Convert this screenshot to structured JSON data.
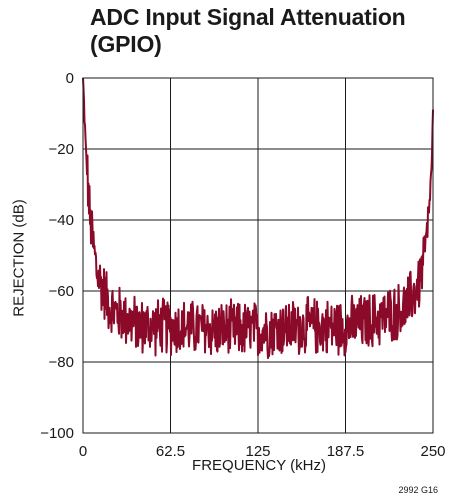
{
  "chart_data": {
    "type": "line",
    "title_line1": "ADC Input Signal Attenuation",
    "title_line2": "(GPIO)",
    "xlabel": "FREQUENCY (kHz)",
    "ylabel": "REJECTION (dB)",
    "xlim": [
      0,
      250
    ],
    "ylim": [
      -100,
      0
    ],
    "x_ticks": [
      0,
      62.5,
      125,
      187.5,
      250
    ],
    "x_tick_labels": [
      "0",
      "62.5",
      "125",
      "187.5",
      "250"
    ],
    "y_ticks": [
      0,
      -20,
      -40,
      -60,
      -80,
      -100
    ],
    "y_tick_labels": [
      "0",
      "−20",
      "−40",
      "−60",
      "−80",
      "−100"
    ],
    "grid": true,
    "line_color": "#8b0a2a",
    "envelope": [
      {
        "x": 0,
        "y": 0
      },
      {
        "x": 2,
        "y": -20
      },
      {
        "x": 5,
        "y": -40
      },
      {
        "x": 10,
        "y": -55
      },
      {
        "x": 20,
        "y": -65
      },
      {
        "x": 40,
        "y": -70
      },
      {
        "x": 62.5,
        "y": -70
      },
      {
        "x": 100,
        "y": -71
      },
      {
        "x": 125,
        "y": -71
      },
      {
        "x": 160,
        "y": -70
      },
      {
        "x": 187.5,
        "y": -70
      },
      {
        "x": 210,
        "y": -68
      },
      {
        "x": 230,
        "y": -65
      },
      {
        "x": 240,
        "y": -58
      },
      {
        "x": 246,
        "y": -45
      },
      {
        "x": 249,
        "y": -25
      },
      {
        "x": 250,
        "y": -10
      }
    ],
    "noise_amplitude_db": 9
  },
  "figure_code": "2992 G16"
}
